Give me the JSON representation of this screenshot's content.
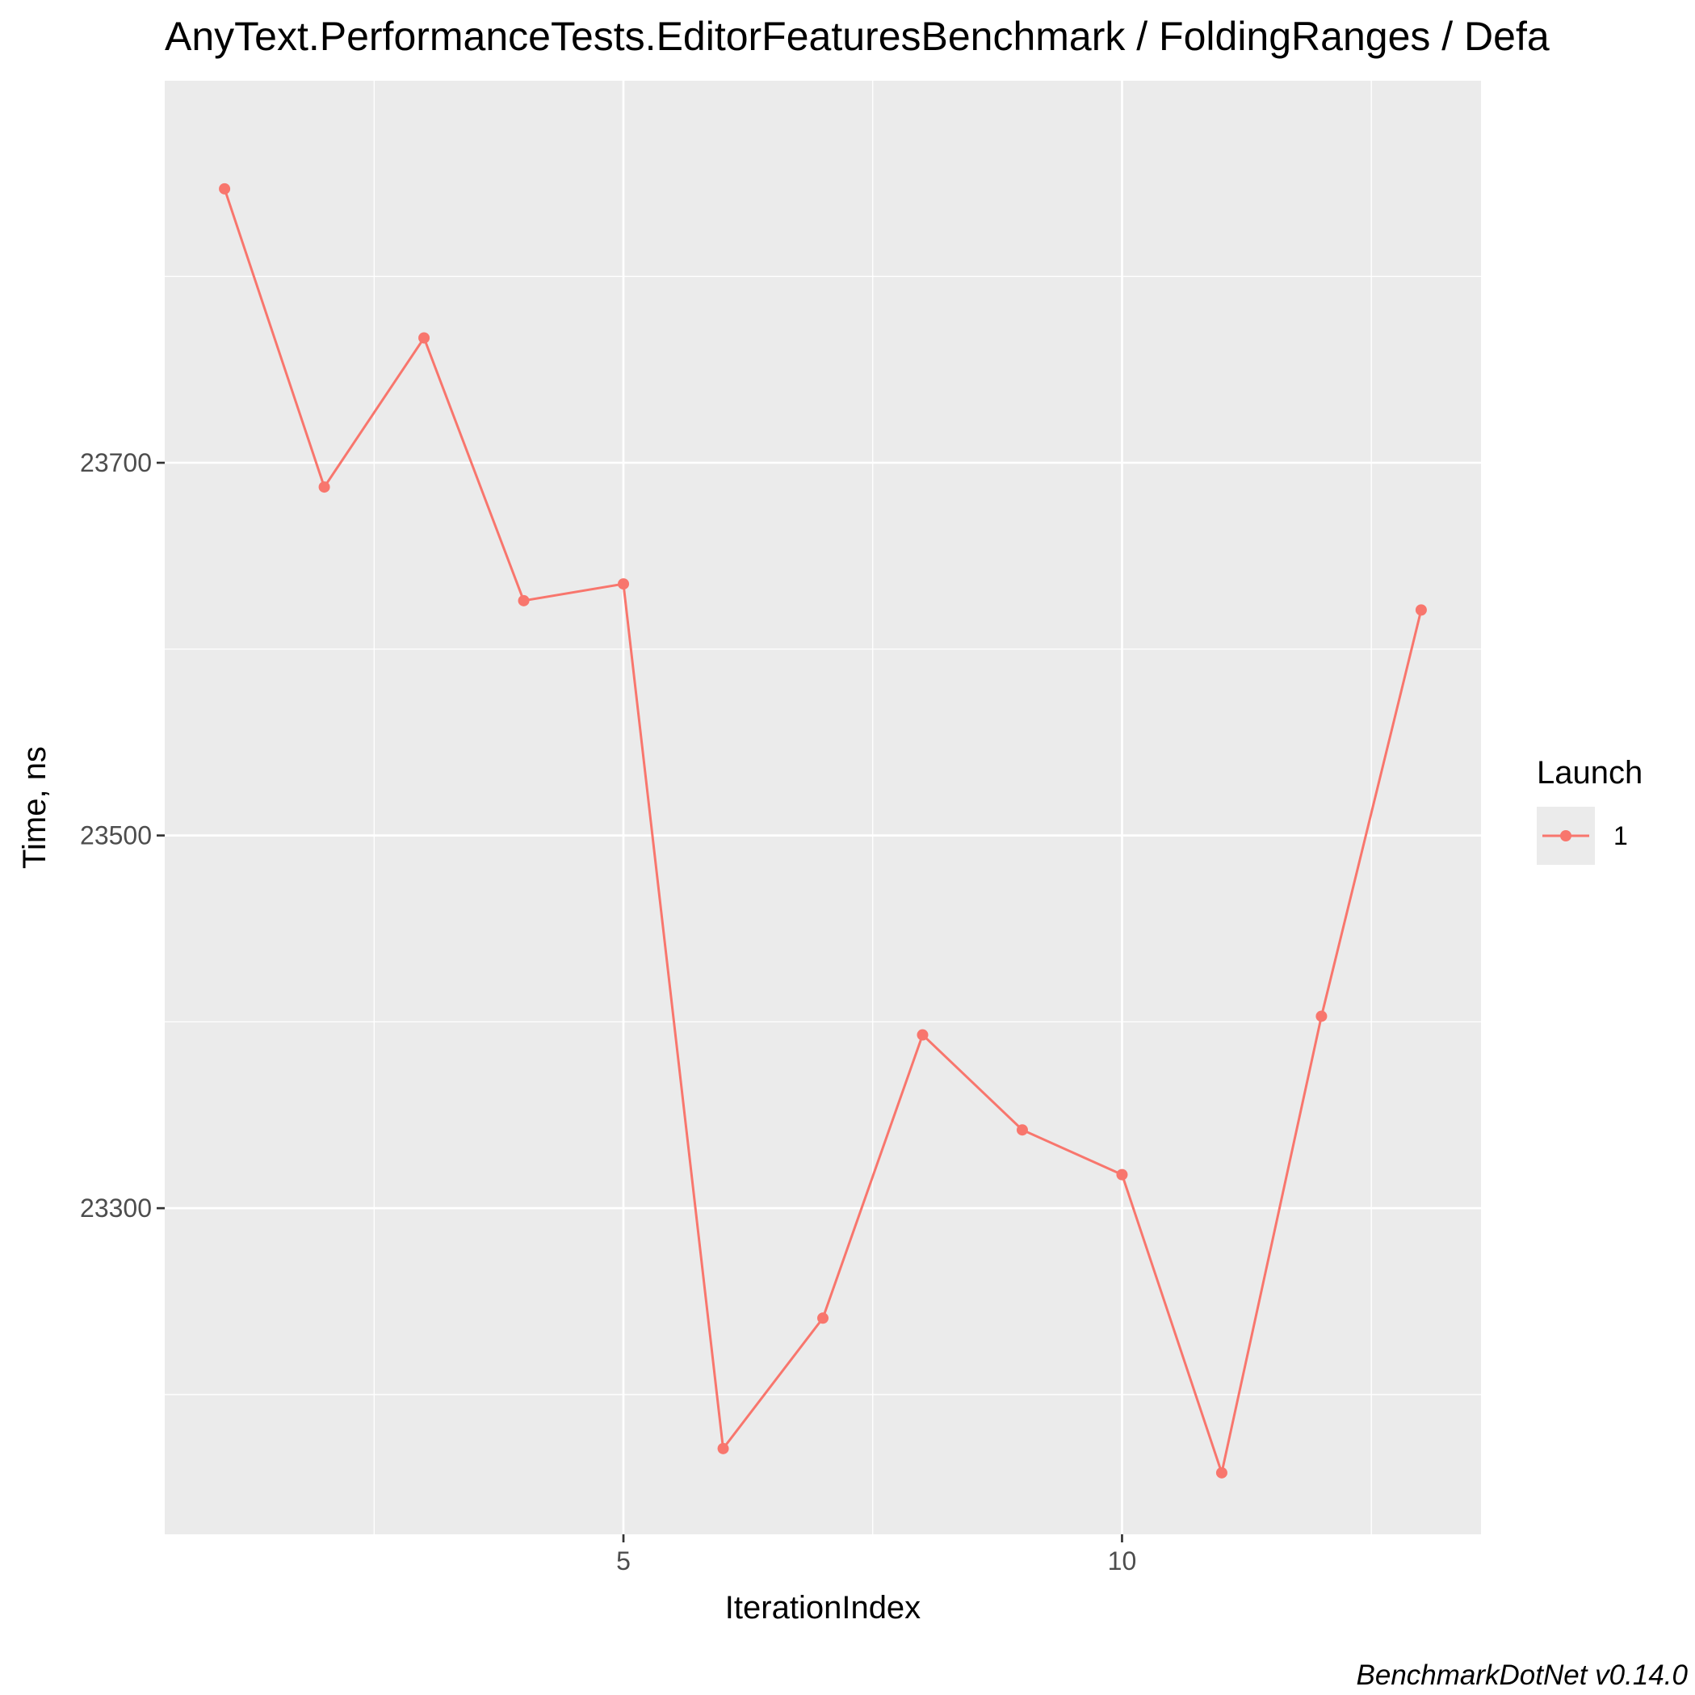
{
  "chart_data": {
    "type": "line",
    "title": "AnyText.PerformanceTests.EditorFeaturesBenchmark / FoldingRanges / Defa",
    "xlabel": "IterationIndex",
    "ylabel": "Time, ns",
    "caption": "BenchmarkDotNet v0.14.0",
    "x_ticks": [
      5,
      10
    ],
    "y_ticks": [
      23300,
      23500,
      23700
    ],
    "xlim": [
      0.4,
      13.6
    ],
    "ylim": [
      23125,
      23905
    ],
    "grid": true,
    "legend": {
      "title": "Launch",
      "position": "right",
      "entries": [
        "1"
      ]
    },
    "series": [
      {
        "name": "1",
        "color": "#F8766D",
        "x": [
          1,
          2,
          3,
          4,
          5,
          6,
          7,
          8,
          9,
          10,
          11,
          12,
          13
        ],
        "y": [
          23847,
          23687,
          23767,
          23626,
          23635,
          23171,
          23241,
          23393,
          23342,
          23318,
          23158,
          23403,
          23621
        ]
      }
    ]
  }
}
